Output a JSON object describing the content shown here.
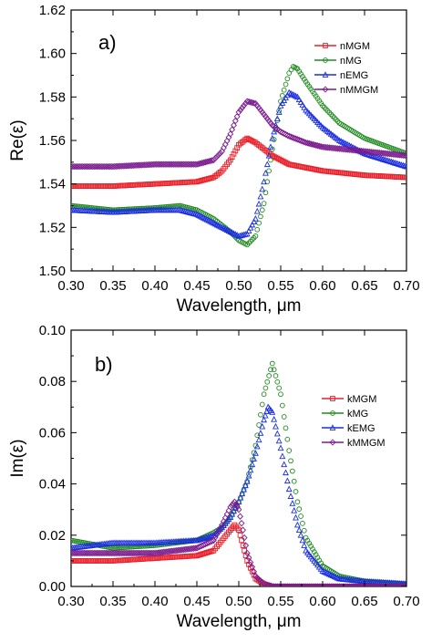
{
  "chart_data": [
    {
      "type": "scatter",
      "panel_label": "a)",
      "xlabel": "Wavelength, μm",
      "ylabel": "Re(ε)",
      "xlim": [
        0.3,
        0.7
      ],
      "ylim": [
        1.5,
        1.62
      ],
      "xticks": [
        "0.30",
        "0.35",
        "0.40",
        "0.45",
        "0.50",
        "0.55",
        "0.60",
        "0.65",
        "0.70"
      ],
      "yticks": [
        "1.50",
        "1.52",
        "1.54",
        "1.56",
        "1.58",
        "1.60",
        "1.62"
      ],
      "legend_position": "top-right",
      "series": [
        {
          "name": "nMGM",
          "color": "#e8202a",
          "marker": "square",
          "x": [
            0.3,
            0.35,
            0.4,
            0.45,
            0.47,
            0.48,
            0.49,
            0.5,
            0.51,
            0.52,
            0.53,
            0.54,
            0.56,
            0.6,
            0.65,
            0.7
          ],
          "y": [
            1.539,
            1.539,
            1.54,
            1.541,
            1.543,
            1.546,
            1.551,
            1.558,
            1.561,
            1.559,
            1.556,
            1.553,
            1.549,
            1.546,
            1.544,
            1.543
          ]
        },
        {
          "name": "nMG",
          "color": "#1e8a1e",
          "marker": "circle",
          "x": [
            0.3,
            0.35,
            0.4,
            0.43,
            0.45,
            0.47,
            0.48,
            0.49,
            0.5,
            0.51,
            0.52,
            0.53,
            0.54,
            0.55,
            0.56,
            0.565,
            0.57,
            0.58,
            0.6,
            0.62,
            0.65,
            0.7
          ],
          "y": [
            1.53,
            1.528,
            1.529,
            1.53,
            1.528,
            1.524,
            1.521,
            1.518,
            1.514,
            1.512,
            1.516,
            1.531,
            1.556,
            1.578,
            1.591,
            1.594,
            1.593,
            1.587,
            1.576,
            1.568,
            1.561,
            1.554
          ]
        },
        {
          "name": "nEMG",
          "color": "#1b2ee0",
          "marker": "triangle",
          "x": [
            0.3,
            0.35,
            0.4,
            0.43,
            0.45,
            0.47,
            0.48,
            0.49,
            0.5,
            0.51,
            0.52,
            0.53,
            0.54,
            0.55,
            0.56,
            0.57,
            0.58,
            0.6,
            0.62,
            0.65,
            0.7
          ],
          "y": [
            1.528,
            1.527,
            1.528,
            1.528,
            1.526,
            1.522,
            1.52,
            1.518,
            1.516,
            1.517,
            1.524,
            1.541,
            1.561,
            1.576,
            1.582,
            1.58,
            1.574,
            1.566,
            1.56,
            1.554,
            1.548
          ]
        },
        {
          "name": "nMMGM",
          "color": "#7a1a8e",
          "marker": "diamond",
          "x": [
            0.3,
            0.35,
            0.4,
            0.45,
            0.47,
            0.48,
            0.49,
            0.5,
            0.51,
            0.52,
            0.53,
            0.54,
            0.55,
            0.56,
            0.58,
            0.6,
            0.65,
            0.7
          ],
          "y": [
            1.548,
            1.548,
            1.549,
            1.549,
            1.551,
            1.555,
            1.563,
            1.573,
            1.578,
            1.577,
            1.572,
            1.567,
            1.564,
            1.562,
            1.559,
            1.557,
            1.555,
            1.553
          ]
        }
      ]
    },
    {
      "type": "scatter",
      "panel_label": "b)",
      "xlabel": "Wavelength, μm",
      "ylabel": "Im(ε)",
      "xlim": [
        0.3,
        0.7
      ],
      "ylim": [
        0.0,
        0.1
      ],
      "xticks": [
        "0.30",
        "0.35",
        "0.40",
        "0.45",
        "0.50",
        "0.55",
        "0.60",
        "0.65",
        "0.70"
      ],
      "yticks": [
        "0.00",
        "0.02",
        "0.04",
        "0.06",
        "0.08",
        "0.10"
      ],
      "legend_position": "right",
      "series": [
        {
          "name": "kMGM",
          "color": "#e8202a",
          "marker": "square",
          "x": [
            0.3,
            0.35,
            0.4,
            0.45,
            0.47,
            0.48,
            0.49,
            0.495,
            0.5,
            0.505,
            0.51,
            0.52,
            0.53,
            0.54,
            0.55,
            0.6,
            0.7
          ],
          "y": [
            0.01,
            0.01,
            0.011,
            0.012,
            0.014,
            0.018,
            0.022,
            0.024,
            0.022,
            0.016,
            0.01,
            0.003,
            0.001,
            0.0,
            0.0,
            0.0,
            0.0
          ]
        },
        {
          "name": "kMG",
          "color": "#1e8a1e",
          "marker": "circle",
          "x": [
            0.3,
            0.35,
            0.4,
            0.45,
            0.47,
            0.48,
            0.49,
            0.5,
            0.51,
            0.52,
            0.53,
            0.54,
            0.55,
            0.56,
            0.57,
            0.58,
            0.6,
            0.62,
            0.65,
            0.7
          ],
          "y": [
            0.018,
            0.015,
            0.016,
            0.018,
            0.021,
            0.023,
            0.027,
            0.033,
            0.041,
            0.055,
            0.075,
            0.087,
            0.075,
            0.053,
            0.033,
            0.019,
            0.008,
            0.004,
            0.002,
            0.001
          ]
        },
        {
          "name": "kEMG",
          "color": "#1b2ee0",
          "marker": "triangle",
          "x": [
            0.3,
            0.35,
            0.4,
            0.45,
            0.47,
            0.48,
            0.49,
            0.5,
            0.51,
            0.52,
            0.53,
            0.535,
            0.54,
            0.55,
            0.56,
            0.57,
            0.58,
            0.6,
            0.62,
            0.65,
            0.7
          ],
          "y": [
            0.015,
            0.017,
            0.017,
            0.018,
            0.02,
            0.023,
            0.027,
            0.033,
            0.041,
            0.052,
            0.065,
            0.07,
            0.068,
            0.054,
            0.038,
            0.024,
            0.014,
            0.006,
            0.003,
            0.002,
            0.001
          ]
        },
        {
          "name": "kMMGM",
          "color": "#7a1a8e",
          "marker": "diamond",
          "x": [
            0.3,
            0.35,
            0.4,
            0.45,
            0.47,
            0.48,
            0.49,
            0.495,
            0.5,
            0.505,
            0.51,
            0.52,
            0.53,
            0.54,
            0.55,
            0.7
          ],
          "y": [
            0.013,
            0.013,
            0.013,
            0.015,
            0.018,
            0.024,
            0.031,
            0.033,
            0.03,
            0.022,
            0.013,
            0.004,
            0.001,
            0.0,
            0.0,
            0.0
          ]
        }
      ]
    }
  ]
}
